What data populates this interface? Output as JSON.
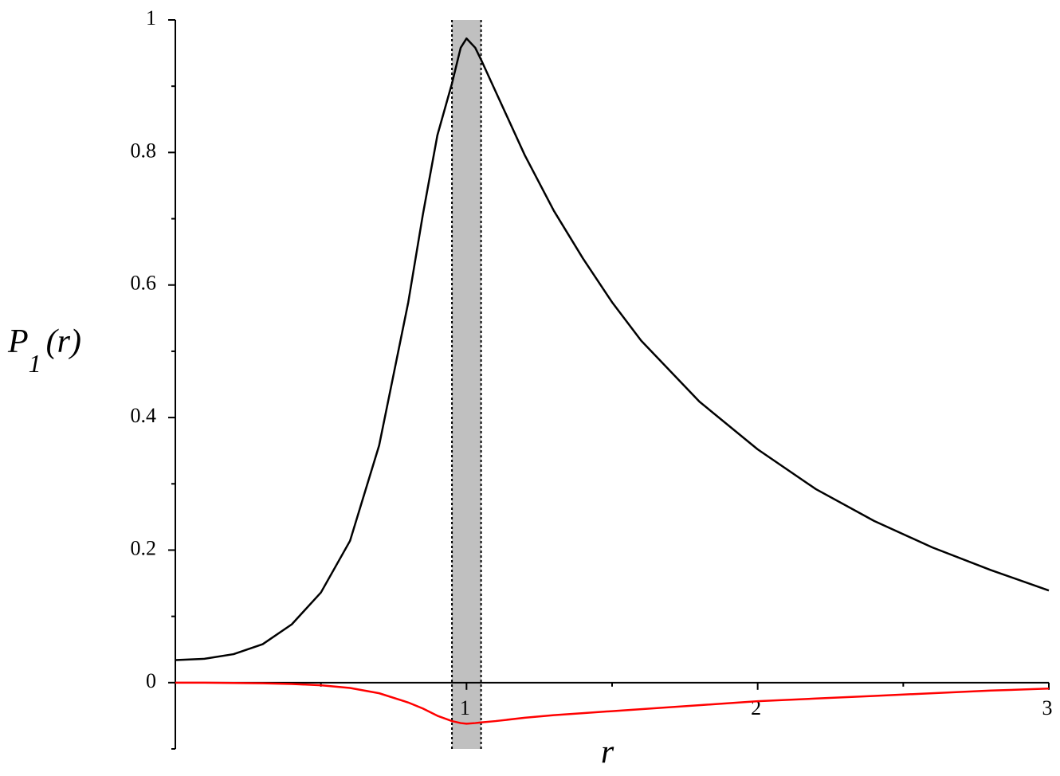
{
  "chart_data": {
    "type": "line",
    "xlabel": "r",
    "ylabel": "P",
    "ylabel_subscript": "1",
    "ylabel_suffix": "(r)",
    "x": [
      0,
      0.1,
      0.2,
      0.3,
      0.4,
      0.5,
      0.6,
      0.7,
      0.8,
      0.85,
      0.9,
      0.95,
      0.98,
      1.0,
      1.03,
      1.05,
      1.1,
      1.2,
      1.3,
      1.4,
      1.5,
      1.6,
      1.8,
      2.0,
      2.2,
      2.4,
      2.6,
      2.8,
      3.0
    ],
    "series": [
      {
        "color": "#000000",
        "values": [
          0.034,
          0.036,
          0.043,
          0.058,
          0.088,
          0.136,
          0.214,
          0.358,
          0.574,
          0.706,
          0.826,
          0.904,
          0.958,
          0.972,
          0.958,
          0.94,
          0.892,
          0.796,
          0.712,
          0.64,
          0.574,
          0.516,
          0.424,
          0.352,
          0.292,
          0.244,
          0.204,
          0.17,
          0.139
        ]
      },
      {
        "color": "#ff0000",
        "values": [
          0,
          0,
          -0.0005,
          -0.001,
          -0.002,
          -0.004,
          -0.008,
          -0.016,
          -0.03,
          -0.039,
          -0.05,
          -0.058,
          -0.061,
          -0.062,
          -0.061,
          -0.06,
          -0.058,
          -0.053,
          -0.049,
          -0.046,
          -0.043,
          -0.04,
          -0.034,
          -0.028,
          -0.024,
          -0.02,
          -0.016,
          -0.012,
          -0.009
        ]
      }
    ],
    "band": [
      0.95,
      1.05
    ],
    "band_color": "#c0c0c0",
    "xlim": [
      0,
      3
    ],
    "ylim": [
      -0.1,
      1
    ],
    "xticks": [
      1,
      2,
      3
    ],
    "xminorticks": [
      0.5,
      1.5,
      2.5
    ],
    "yticks": [
      0,
      0.2,
      0.4,
      0.6,
      0.8,
      1
    ],
    "yminorticks": [
      -0.1,
      0.1,
      0.3,
      0.5,
      0.7,
      0.9
    ]
  }
}
